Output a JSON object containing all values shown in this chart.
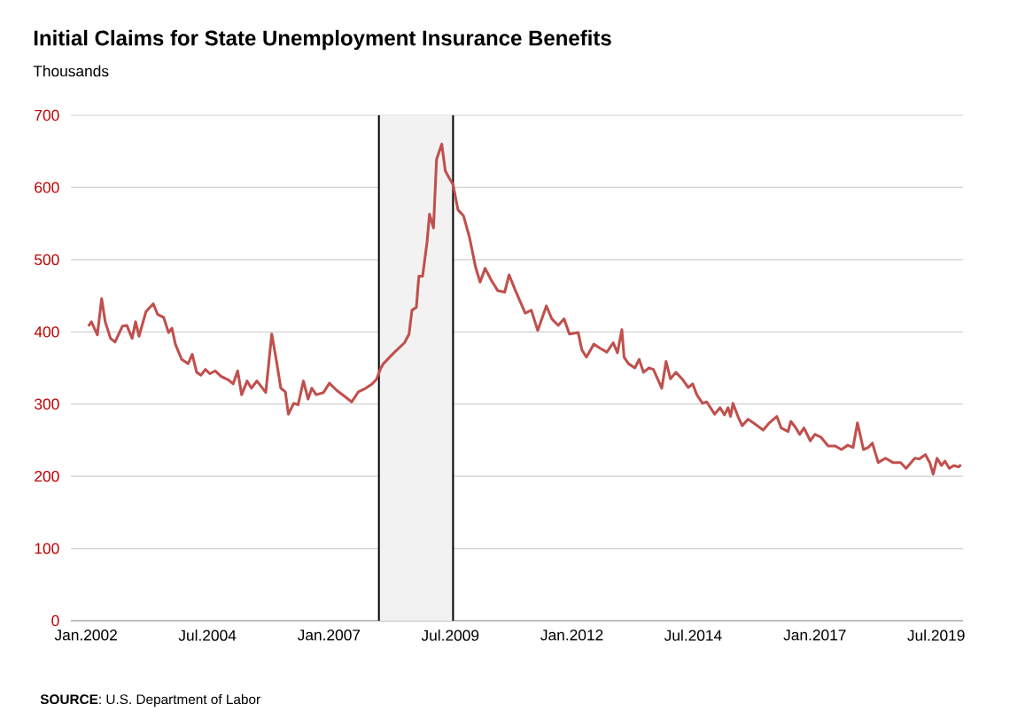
{
  "chart_data": {
    "type": "line",
    "title": "Initial Claims for State Unemployment Insurance Benefits",
    "subtitle": "Thousands",
    "annotations": [
      "**SOURCE**: U.S. Department of Labor"
    ],
    "x": [
      "2002-01-19",
      "2002-02-10",
      "2002-03-27",
      "2002-04-28",
      "2002-05-25",
      "2002-07-04",
      "2002-08-07",
      "2002-10-01",
      "2002-11-03",
      "2002-12-13",
      "2003-01-08",
      "2003-02-03",
      "2003-03-27",
      "2003-05-21",
      "2003-06-23",
      "2003-08-07",
      "2003-09-13",
      "2003-10-08",
      "2003-11-03",
      "2003-12-20",
      "2004-02-07",
      "2004-03-09",
      "2004-04-11",
      "2004-05-14",
      "2004-06-16",
      "2004-07-19",
      "2004-08-28",
      "2004-10-15",
      "2004-12-02",
      "2005-01-11",
      "2005-02-14",
      "2005-03-16",
      "2005-04-26",
      "2005-05-28",
      "2005-07-08",
      "2005-09-13",
      "2005-10-28",
      "2005-12-02",
      "2006-01-04",
      "2006-02-07",
      "2006-03-02",
      "2006-04-11",
      "2006-05-14",
      "2006-06-23",
      "2006-07-28",
      "2006-08-25",
      "2006-09-27",
      "2006-11-21",
      "2007-01-04",
      "2007-02-28",
      "2007-05-03",
      "2007-06-20",
      "2007-08-10",
      "2007-10-04",
      "2007-11-21",
      "2007-12-23",
      "2008-01-26",
      "2008-02-14",
      "2008-05-03",
      "2008-07-22",
      "2008-08-25",
      "2008-09-16",
      "2008-10-19",
      "2008-11-07",
      "2008-12-05",
      "2009-01-08",
      "2009-01-26",
      "2009-02-25",
      "2009-03-20",
      "2009-04-28",
      "2009-05-25",
      "2009-06-20",
      "2009-07-22",
      "2009-08-28",
      "2009-10-08",
      "2009-11-21",
      "2010-01-08",
      "2010-02-10",
      "2010-03-20",
      "2010-05-07",
      "2010-06-23",
      "2010-08-14",
      "2010-09-16",
      "2010-11-03",
      "2011-01-15",
      "2011-03-02",
      "2011-04-19",
      "2011-06-23",
      "2011-08-03",
      "2011-09-20",
      "2011-11-03",
      "2011-12-13",
      "2012-02-17",
      "2012-03-16",
      "2012-04-19",
      "2012-06-14",
      "2012-07-26",
      "2012-09-20",
      "2012-11-07",
      "2012-12-09",
      "2013-01-11",
      "2013-01-28",
      "2013-03-02",
      "2013-04-19",
      "2013-05-21",
      "2013-06-23",
      "2013-08-03",
      "2013-09-05",
      "2013-11-07",
      "2013-12-09",
      "2014-01-11",
      "2014-02-21",
      "2014-04-08",
      "2014-05-25",
      "2014-06-27",
      "2014-07-28",
      "2014-09-09",
      "2014-10-11",
      "2014-12-09",
      "2015-01-19",
      "2015-02-21",
      "2015-03-20",
      "2015-04-08",
      "2015-04-26",
      "2015-06-02",
      "2015-07-04",
      "2015-08-17",
      "2015-10-04",
      "2015-12-09",
      "2016-01-19",
      "2016-03-20",
      "2016-04-22",
      "2016-06-13",
      "2016-07-04",
      "2016-08-07",
      "2016-09-09",
      "2016-10-11",
      "2016-11-28",
      "2017-01-01",
      "2017-02-17",
      "2017-04-11",
      "2017-06-02",
      "2017-07-19",
      "2017-09-05",
      "2017-10-15",
      "2017-11-17",
      "2018-01-01",
      "2018-02-07",
      "2018-03-09",
      "2018-04-22",
      "2018-06-16",
      "2018-08-10",
      "2018-10-08",
      "2018-11-17",
      "2019-01-22",
      "2019-02-25",
      "2019-04-11",
      "2019-05-14",
      "2019-06-09",
      "2019-07-08",
      "2019-08-10",
      "2019-09-05",
      "2019-10-08",
      "2019-11-10",
      "2019-12-16",
      "2020-01-04"
    ],
    "values": [
      408,
      414,
      396,
      446,
      414,
      391,
      386,
      408,
      409,
      391,
      414,
      394,
      428,
      439,
      424,
      420,
      399,
      405,
      383,
      362,
      356,
      369,
      344,
      340,
      348,
      342,
      346,
      338,
      334,
      328,
      346,
      313,
      332,
      322,
      332,
      316,
      397,
      360,
      322,
      317,
      286,
      301,
      299,
      332,
      307,
      322,
      313,
      316,
      329,
      319,
      310,
      303,
      317,
      322,
      328,
      334,
      350,
      356,
      371,
      385,
      397,
      430,
      434,
      477,
      477,
      525,
      563,
      544,
      639,
      660,
      623,
      614,
      604,
      569,
      561,
      532,
      489,
      469,
      488,
      471,
      457,
      455,
      479,
      457,
      426,
      430,
      402,
      436,
      418,
      409,
      418,
      397,
      399,
      375,
      365,
      383,
      378,
      372,
      385,
      371,
      403,
      365,
      356,
      350,
      362,
      344,
      350,
      348,
      322,
      359,
      335,
      344,
      335,
      323,
      328,
      313,
      301,
      303,
      286,
      295,
      285,
      295,
      283,
      301,
      283,
      270,
      279,
      273,
      264,
      273,
      283,
      267,
      262,
      276,
      268,
      258,
      267,
      249,
      258,
      254,
      242,
      242,
      237,
      243,
      240,
      274,
      237,
      240,
      246,
      219,
      225,
      219,
      219,
      211,
      225,
      224,
      230,
      219,
      203,
      225,
      215,
      221,
      211,
      215,
      213,
      216
    ],
    "color": "#c0504d",
    "xlim": [
      "2001-09-09",
      "2020-01-19"
    ],
    "xticks": [
      {
        "value": "2002-01",
        "label": "Jan.2002"
      },
      {
        "value": "2004-07",
        "label": "Jul.2004"
      },
      {
        "value": "2007-01",
        "label": "Jan.2007"
      },
      {
        "value": "2009-07",
        "label": "Jul.2009"
      },
      {
        "value": "2012-01",
        "label": "Jan.2012"
      },
      {
        "value": "2014-07",
        "label": "Jul.2014"
      },
      {
        "value": "2017-01",
        "label": "Jan.2017"
      },
      {
        "value": "2019-07",
        "label": "Jul.2019"
      }
    ],
    "ylim": [
      0,
      700
    ],
    "yticks": [
      0,
      100,
      200,
      300,
      400,
      500,
      600,
      700
    ],
    "grid": "y",
    "bands": [
      {
        "axis": "x",
        "from": "2008-01-11",
        "to": "2009-07-22",
        "color": "#f2f2f2"
      }
    ],
    "ref_lines": [
      {
        "axis": "x",
        "value": "2008-01-11",
        "color": "#000000"
      },
      {
        "axis": "x",
        "value": "2009-07-22",
        "color": "#000000"
      }
    ]
  }
}
